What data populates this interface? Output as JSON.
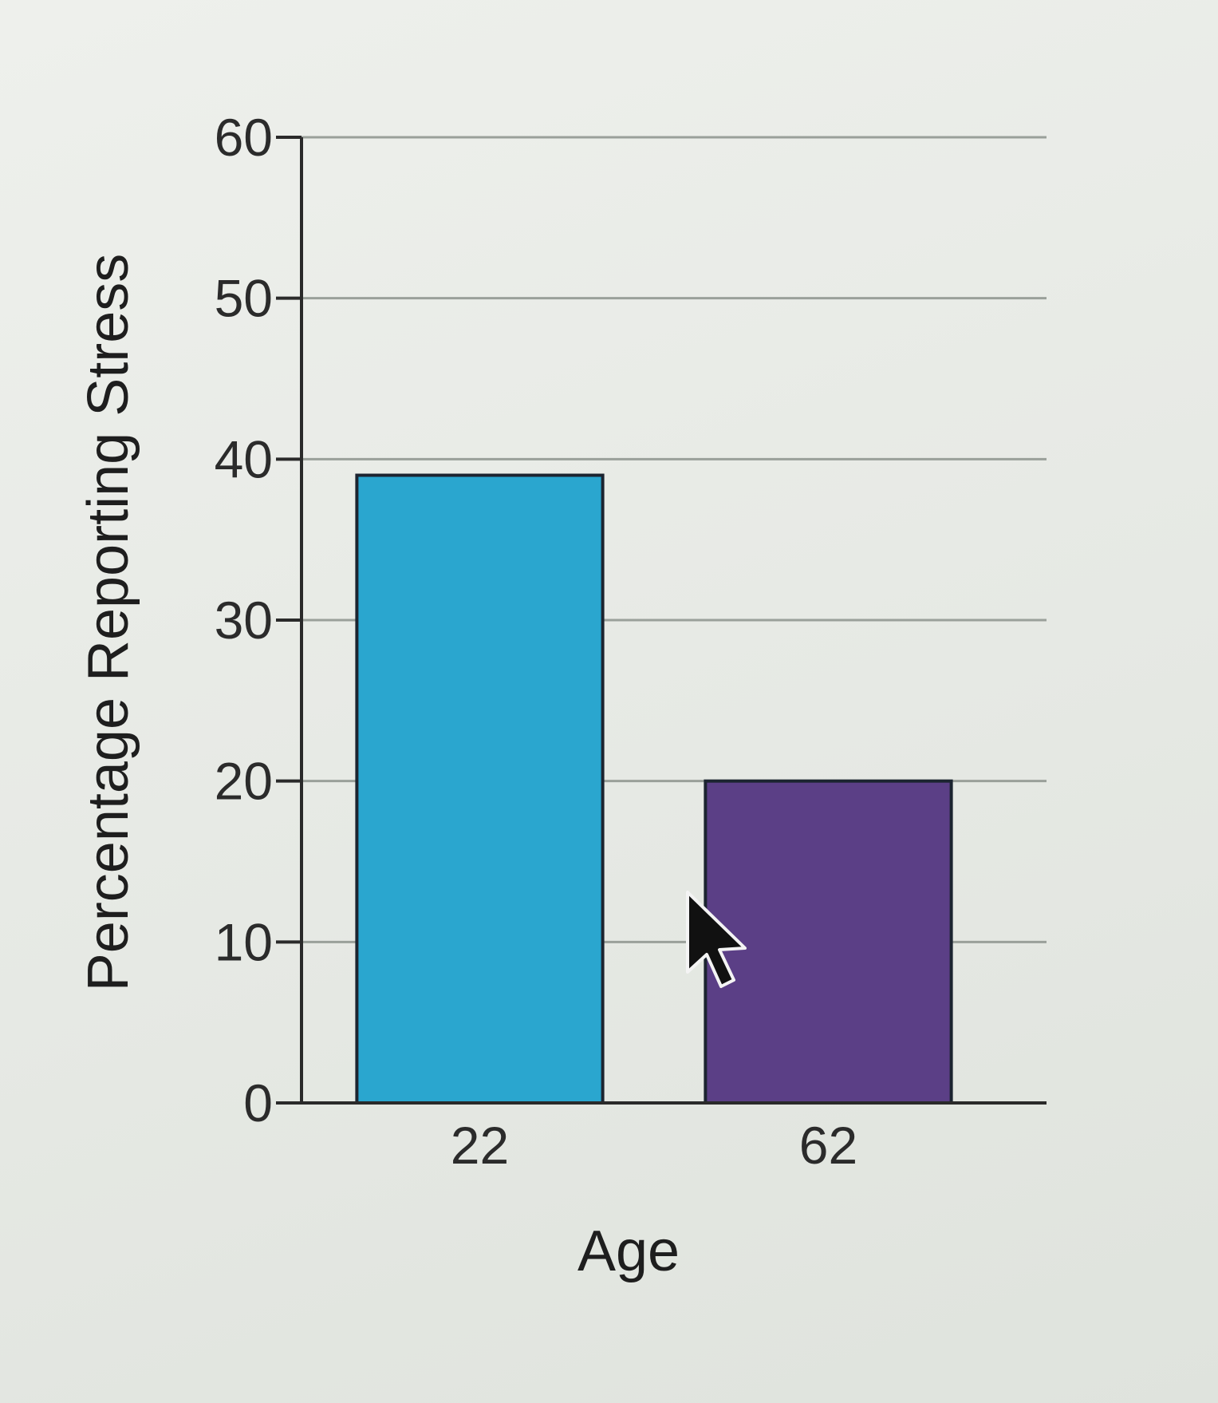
{
  "chart_data": {
    "type": "bar",
    "title": "",
    "xlabel": "Age",
    "ylabel": "Percentage Reporting Stress",
    "categories": [
      "22",
      "62"
    ],
    "values": [
      39,
      20
    ],
    "bar_colors": [
      "#2aa6cf",
      "#5b3f86"
    ],
    "ylim": [
      0,
      60
    ],
    "yticks": [
      "0",
      "10",
      "20",
      "30",
      "40",
      "50",
      "60"
    ],
    "grid": true,
    "legend": "none"
  },
  "cursor": {
    "icon": "mouse-pointer-icon"
  }
}
